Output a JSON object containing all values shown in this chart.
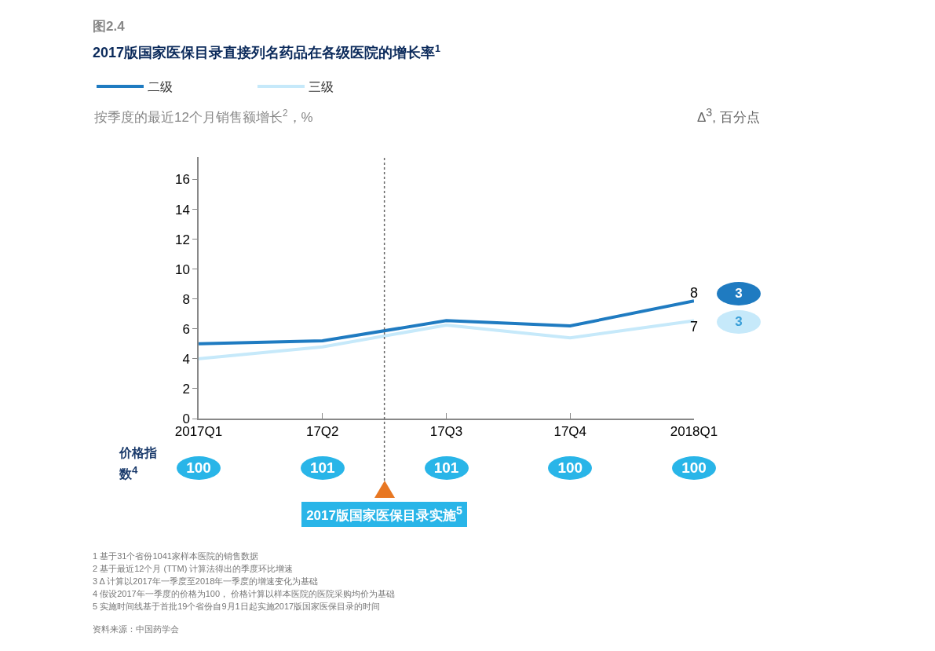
{
  "chart_data": {
    "type": "line",
    "title": "2017版国家医保目录直接列名药品在各级医院的增长率$^{1}$",
    "subtitle": "按季度的最近12个月销售额增长$^{2}$，%",
    "categories": [
      "2017Q1",
      "17Q2",
      "17Q3",
      "17Q4",
      "2018Q1"
    ],
    "series": [
      {
        "name": "二级",
        "color": "#1f7bc1",
        "values": [
          5.0,
          5.2,
          6.55,
          6.2,
          7.87
        ],
        "value_labels": [
          null,
          null,
          null,
          null,
          "8"
        ]
      },
      {
        "name": "三级",
        "color": "#c6e9fa",
        "values": [
          4.0,
          4.8,
          6.25,
          5.4,
          6.55
        ],
        "value_labels": [
          null,
          null,
          null,
          null,
          "7"
        ]
      }
    ],
    "ylim": [
      0,
      17.5
    ],
    "yticks": [
      0,
      2,
      4,
      6,
      8,
      10,
      12,
      14,
      16
    ],
    "grid": false,
    "legend": "top left",
    "marker": "none",
    "line_style": "solid",
    "annotations": [
      "图2.4",
      "Δ$^{3}$, 百分点",
      "价格指数$^{4}$",
      "100",
      "101",
      "101",
      "100",
      "100",
      "3",
      "3",
      "2017版国家医保目录实施$^{5}$",
      "1 基于31个省份1041家样本医院的销售数据",
      "2 基于最近12个月 (TTM) 计算法得出的季度环比增速",
      "3 Δ 计算以2017年一季度至2018年一季度的增速变化为基础",
      "4 假设2017年一季度的价格为100， 价格计算以样本医院的医院采购均价为基础",
      "5 实施时间线基于首批19个省份自9月1日起实施2017版国家医保目录的时间",
      "资料来源：中国药学会"
    ]
  }
}
